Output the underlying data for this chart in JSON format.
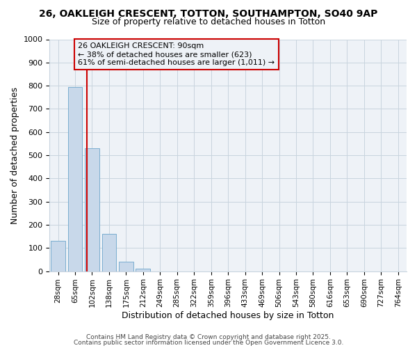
{
  "title1": "26, OAKLEIGH CRESCENT, TOTTON, SOUTHAMPTON, SO40 9AP",
  "title2": "Size of property relative to detached houses in Totton",
  "xlabel": "Distribution of detached houses by size in Totton",
  "ylabel": "Number of detached properties",
  "categories": [
    "28sqm",
    "65sqm",
    "102sqm",
    "138sqm",
    "175sqm",
    "212sqm",
    "249sqm",
    "285sqm",
    "322sqm",
    "359sqm",
    "396sqm",
    "433sqm",
    "469sqm",
    "506sqm",
    "543sqm",
    "580sqm",
    "616sqm",
    "653sqm",
    "690sqm",
    "727sqm",
    "764sqm"
  ],
  "values": [
    130,
    795,
    530,
    160,
    40,
    12,
    0,
    0,
    0,
    0,
    0,
    0,
    0,
    0,
    0,
    0,
    0,
    0,
    0,
    0,
    0
  ],
  "bar_color": "#c8d8ea",
  "bar_edge_color": "#7aadcf",
  "bar_width": 0.85,
  "vline_color": "#cc0000",
  "annotation_line1": "26 OAKLEIGH CRESCENT: 90sqm",
  "annotation_line2": "← 38% of detached houses are smaller (623)",
  "annotation_line3": "61% of semi-detached houses are larger (1,011) →",
  "annotation_box_color": "#cc0000",
  "ylim": [
    0,
    1000
  ],
  "yticks": [
    0,
    100,
    200,
    300,
    400,
    500,
    600,
    700,
    800,
    900,
    1000
  ],
  "grid_color": "#c8d4de",
  "bg_color": "#ffffff",
  "plot_bg_color": "#eef2f7",
  "footer1": "Contains HM Land Registry data © Crown copyright and database right 2025.",
  "footer2": "Contains public sector information licensed under the Open Government Licence 3.0."
}
